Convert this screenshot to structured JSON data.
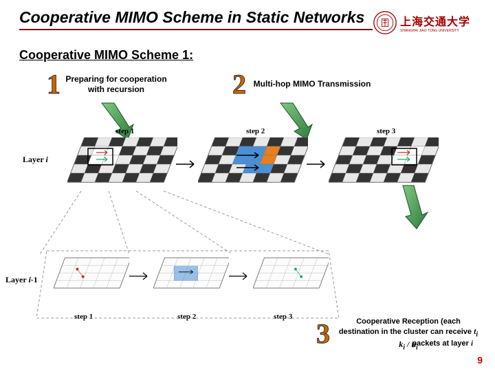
{
  "title": "Cooperative MIMO Scheme in Static Networks",
  "subtitle": "Cooperative MIMO Scheme 1:",
  "logo": {
    "uni": "上海交通大学",
    "sub": "SHANGHAI JIAO TONG UNIVERSITY"
  },
  "callouts": {
    "c1": {
      "num": "1",
      "text": "Preparing for cooperation with recursion"
    },
    "c2": {
      "num": "2",
      "text": "Multi-hop MIMO Transmission"
    },
    "c3": {
      "num": "3",
      "text": "Cooperative Reception (each destination in the cluster can receive"
    }
  },
  "layers": {
    "i": "Layer i",
    "im1": "Layer i-1"
  },
  "steps": {
    "s1": "step 1",
    "s2": "step 2",
    "s3": "step 3"
  },
  "math": "t_i k_i / n_i",
  "bottom": "packets at layer i",
  "pagenum": "9",
  "colors": {
    "title_underline": "#800000",
    "bignum": "#cc6600",
    "logo": "#a00000",
    "pagenum": "#cc0000",
    "arrow_green_dark": "#2d7a3e",
    "arrow_green_light": "#7fc97f",
    "grid_dark": "#333333",
    "grid_light": "#e8e8e8",
    "accent_blue": "#4a90d9",
    "accent_orange": "#e67e22",
    "accent_red": "#c0392b",
    "accent_green": "#27ae60",
    "dash": "#999999"
  },
  "grid": {
    "cols": 7,
    "rows": 5
  }
}
